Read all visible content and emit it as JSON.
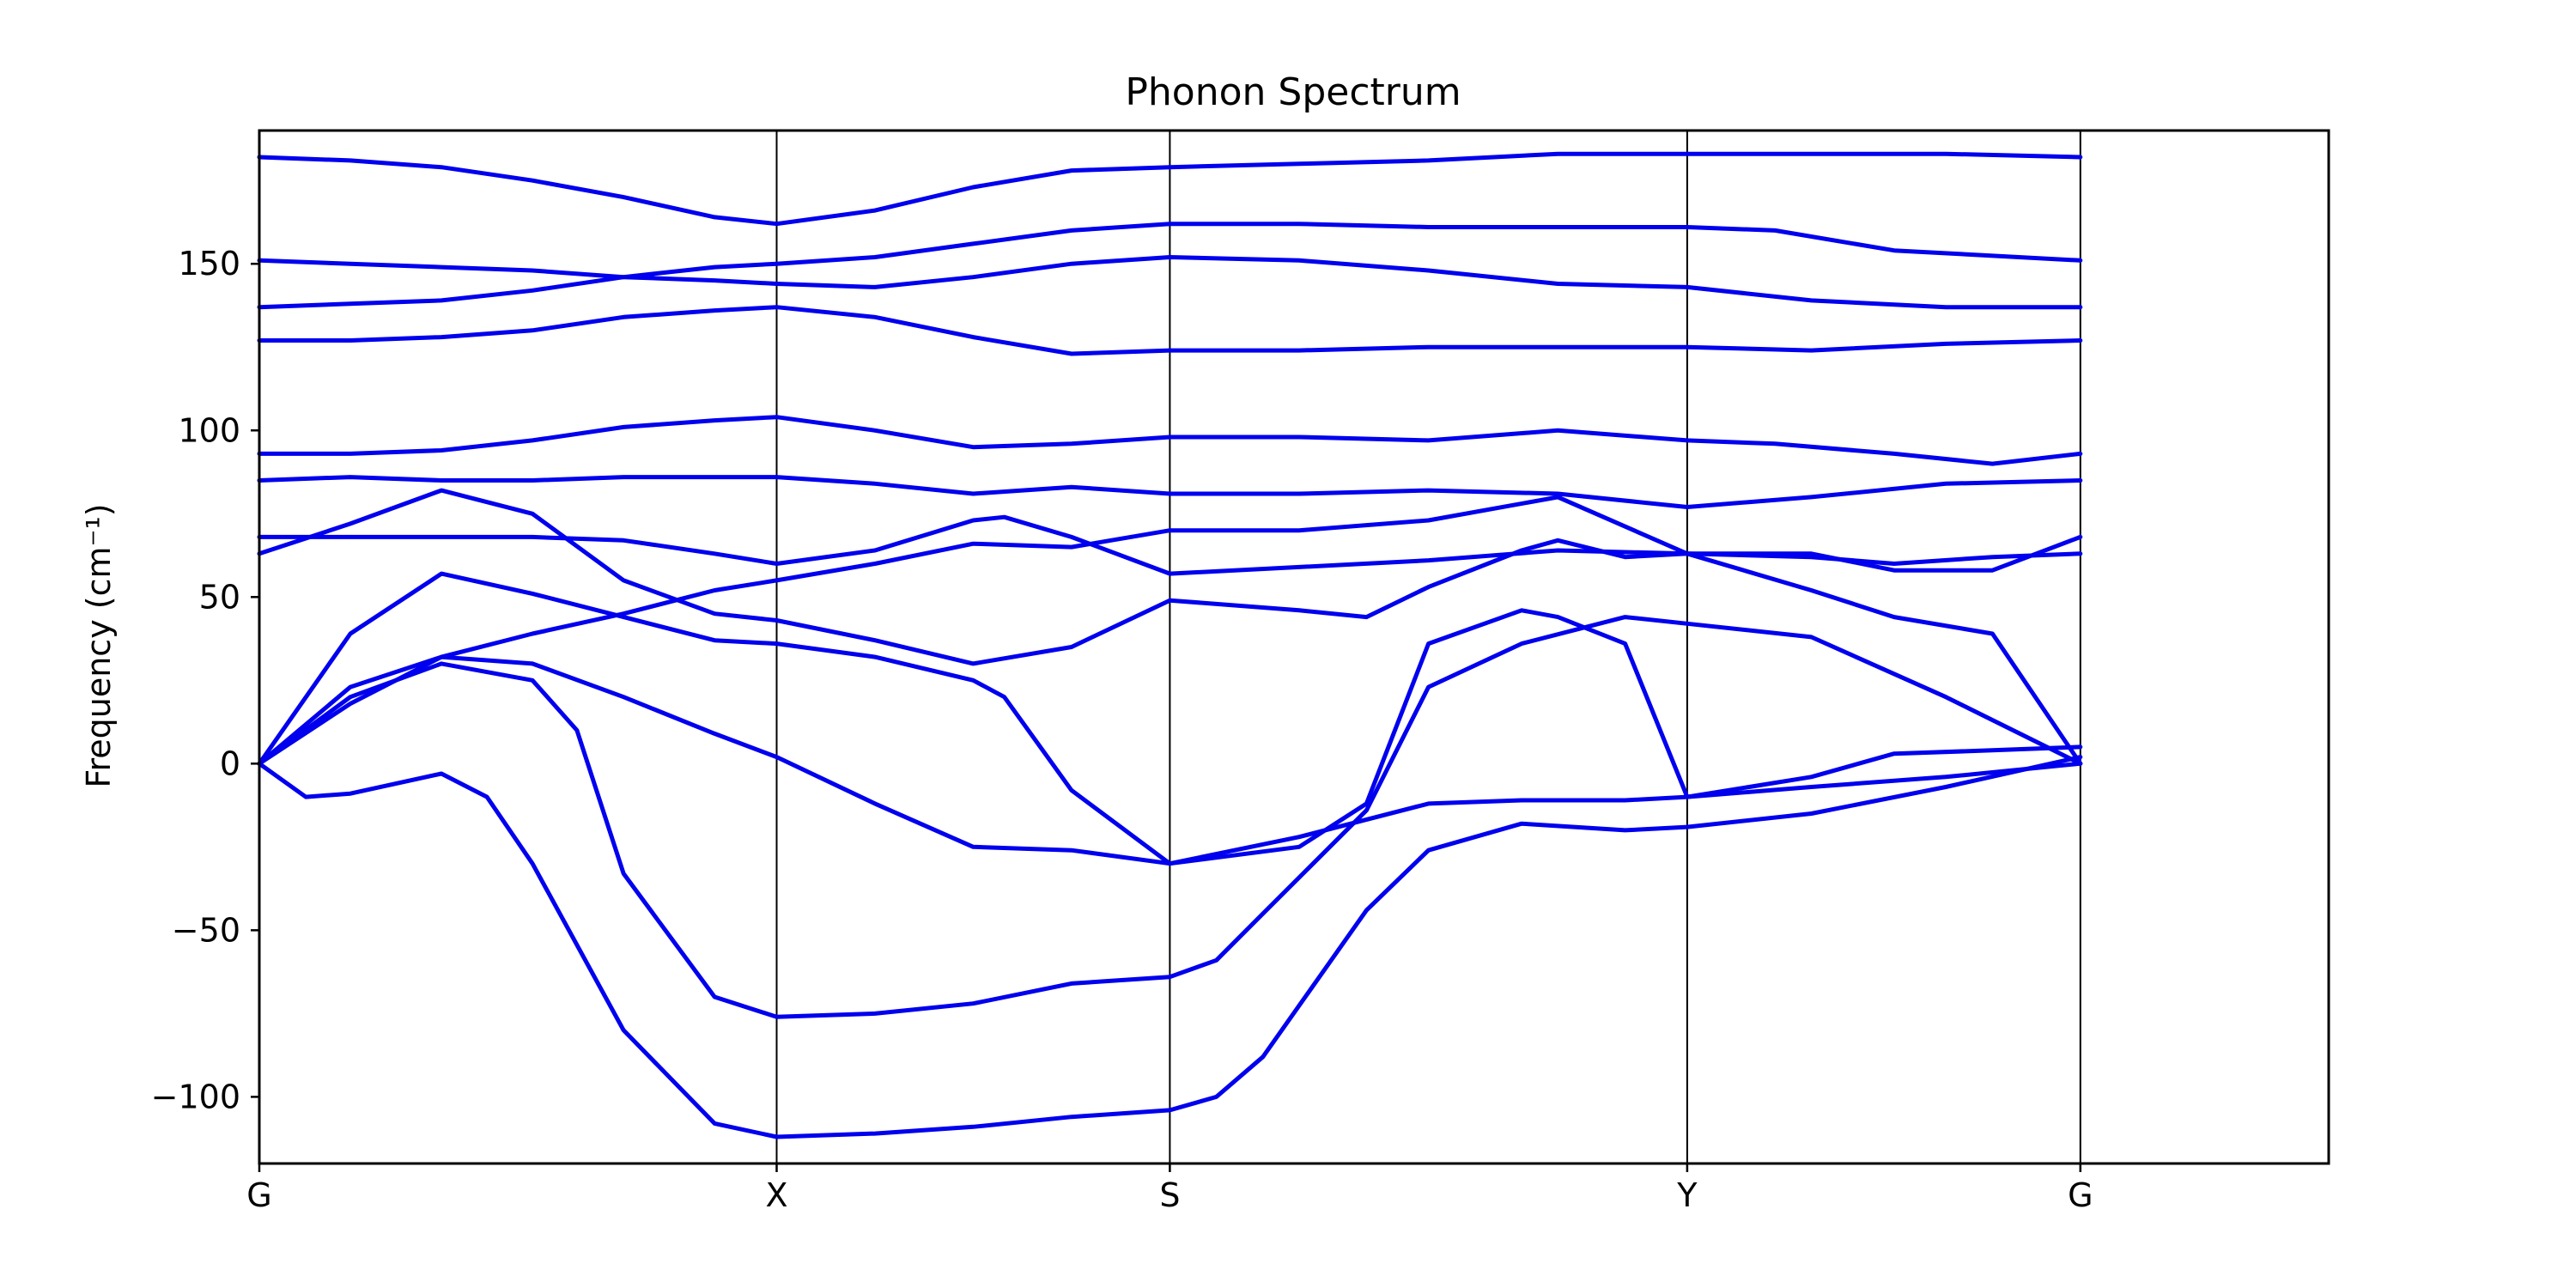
{
  "chart_data": {
    "type": "line",
    "title": "Phonon Spectrum",
    "xlabel": "",
    "ylabel": "Frequency (cm⁻¹)",
    "ylim": [
      -120,
      190
    ],
    "yticks": [
      -100,
      -50,
      0,
      50,
      100,
      150
    ],
    "xlim": [
      0,
      4
    ],
    "high_symmetry_points": [
      {
        "label": "G",
        "x": 0
      },
      {
        "label": "X",
        "x": 1
      },
      {
        "label": "S",
        "x": 1.76
      },
      {
        "label": "Y",
        "x": 2.76
      },
      {
        "label": "G",
        "x": 3.52
      }
    ],
    "grid": false,
    "series_color": "#0000ee",
    "series": [
      {
        "points": [
          [
            0,
            182
          ],
          [
            0.176,
            181
          ],
          [
            0.352,
            179
          ],
          [
            0.528,
            175
          ],
          [
            0.704,
            170
          ],
          [
            0.88,
            164
          ],
          [
            1.0,
            162
          ],
          [
            1.19,
            166
          ],
          [
            1.38,
            173
          ],
          [
            1.57,
            178
          ],
          [
            1.76,
            179
          ],
          [
            2.01,
            180
          ],
          [
            2.26,
            181
          ],
          [
            2.51,
            183
          ],
          [
            2.76,
            183
          ],
          [
            3.0,
            183
          ],
          [
            3.26,
            183
          ],
          [
            3.52,
            182
          ]
        ]
      },
      {
        "points": [
          [
            0,
            151
          ],
          [
            0.176,
            150
          ],
          [
            0.352,
            149
          ],
          [
            0.528,
            148
          ],
          [
            0.704,
            146
          ],
          [
            0.88,
            145
          ],
          [
            1.0,
            144
          ],
          [
            1.19,
            143
          ],
          [
            1.38,
            146
          ],
          [
            1.57,
            150
          ],
          [
            1.76,
            152
          ],
          [
            2.01,
            151
          ],
          [
            2.26,
            148
          ],
          [
            2.51,
            144
          ],
          [
            2.76,
            143
          ],
          [
            3.0,
            139
          ],
          [
            3.26,
            137
          ],
          [
            3.52,
            137
          ]
        ]
      },
      {
        "points": [
          [
            0,
            137
          ],
          [
            0.176,
            138
          ],
          [
            0.352,
            139
          ],
          [
            0.528,
            142
          ],
          [
            0.704,
            146
          ],
          [
            0.88,
            149
          ],
          [
            1.0,
            150
          ],
          [
            1.19,
            152
          ],
          [
            1.38,
            156
          ],
          [
            1.57,
            160
          ],
          [
            1.76,
            162
          ],
          [
            2.01,
            162
          ],
          [
            2.26,
            161
          ],
          [
            2.51,
            161
          ],
          [
            2.76,
            161
          ],
          [
            2.93,
            160
          ],
          [
            3.16,
            154
          ],
          [
            3.52,
            151
          ]
        ]
      },
      {
        "points": [
          [
            0,
            127
          ],
          [
            0.176,
            127
          ],
          [
            0.352,
            128
          ],
          [
            0.528,
            130
          ],
          [
            0.704,
            134
          ],
          [
            0.88,
            136
          ],
          [
            1.0,
            137
          ],
          [
            1.19,
            134
          ],
          [
            1.38,
            128
          ],
          [
            1.57,
            123
          ],
          [
            1.76,
            124
          ],
          [
            2.01,
            124
          ],
          [
            2.26,
            125
          ],
          [
            2.51,
            125
          ],
          [
            2.76,
            125
          ],
          [
            3.0,
            124
          ],
          [
            3.26,
            126
          ],
          [
            3.52,
            127
          ]
        ]
      },
      {
        "points": [
          [
            0,
            93
          ],
          [
            0.176,
            93
          ],
          [
            0.352,
            94
          ],
          [
            0.528,
            97
          ],
          [
            0.704,
            101
          ],
          [
            0.88,
            103
          ],
          [
            1.0,
            104
          ],
          [
            1.19,
            100
          ],
          [
            1.38,
            95
          ],
          [
            1.57,
            96
          ],
          [
            1.76,
            98
          ],
          [
            2.01,
            98
          ],
          [
            2.26,
            97
          ],
          [
            2.51,
            100
          ],
          [
            2.76,
            97
          ],
          [
            2.93,
            96
          ],
          [
            3.16,
            93
          ],
          [
            3.35,
            90
          ],
          [
            3.52,
            93
          ]
        ]
      },
      {
        "points": [
          [
            0,
            85
          ],
          [
            0.176,
            86
          ],
          [
            0.352,
            85
          ],
          [
            0.528,
            85
          ],
          [
            0.704,
            86
          ],
          [
            0.88,
            86
          ],
          [
            1.0,
            86
          ],
          [
            1.19,
            84
          ],
          [
            1.38,
            81
          ],
          [
            1.57,
            83
          ],
          [
            1.76,
            81
          ],
          [
            2.01,
            81
          ],
          [
            2.26,
            82
          ],
          [
            2.51,
            81
          ],
          [
            2.76,
            77
          ],
          [
            3.0,
            80
          ],
          [
            3.26,
            84
          ],
          [
            3.52,
            85
          ]
        ]
      },
      {
        "points": [
          [
            0,
            68
          ],
          [
            0.176,
            68
          ],
          [
            0.352,
            68
          ],
          [
            0.528,
            68
          ],
          [
            0.704,
            67
          ],
          [
            0.88,
            63
          ],
          [
            1.0,
            60
          ],
          [
            1.19,
            64
          ],
          [
            1.38,
            73
          ],
          [
            1.44,
            74
          ],
          [
            1.57,
            68
          ],
          [
            1.76,
            57
          ],
          [
            2.01,
            59
          ],
          [
            2.26,
            61
          ],
          [
            2.51,
            64
          ],
          [
            2.76,
            63
          ],
          [
            3.0,
            63
          ],
          [
            3.16,
            58
          ],
          [
            3.35,
            58
          ],
          [
            3.52,
            68
          ]
        ]
      },
      {
        "points": [
          [
            0,
            63
          ],
          [
            0.176,
            72
          ],
          [
            0.352,
            82
          ],
          [
            0.528,
            75
          ],
          [
            0.704,
            55
          ],
          [
            0.88,
            45
          ],
          [
            1.0,
            43
          ],
          [
            1.19,
            37
          ],
          [
            1.38,
            30
          ],
          [
            1.57,
            35
          ],
          [
            1.76,
            49
          ],
          [
            2.01,
            46
          ],
          [
            2.14,
            44
          ],
          [
            2.26,
            53
          ],
          [
            2.44,
            64
          ],
          [
            2.51,
            67
          ],
          [
            2.64,
            62
          ],
          [
            2.76,
            63
          ],
          [
            3.0,
            62
          ],
          [
            3.16,
            60
          ],
          [
            3.35,
            62
          ],
          [
            3.52,
            63
          ]
        ]
      },
      {
        "points": [
          [
            0,
            0
          ],
          [
            0.176,
            39
          ],
          [
            0.352,
            57
          ],
          [
            0.528,
            51
          ],
          [
            0.704,
            44
          ],
          [
            0.88,
            37
          ],
          [
            1.0,
            36
          ],
          [
            1.19,
            32
          ],
          [
            1.38,
            25
          ],
          [
            1.44,
            20
          ],
          [
            1.57,
            -8
          ],
          [
            1.76,
            -30
          ],
          [
            2.01,
            -25
          ],
          [
            2.14,
            -12
          ],
          [
            2.26,
            36
          ],
          [
            2.44,
            46
          ],
          [
            2.51,
            44
          ],
          [
            2.64,
            36
          ],
          [
            2.76,
            -10
          ],
          [
            3.0,
            -4
          ],
          [
            3.16,
            3
          ],
          [
            3.35,
            4
          ],
          [
            3.52,
            5
          ]
        ]
      },
      {
        "points": [
          [
            0,
            0
          ],
          [
            0.176,
            23
          ],
          [
            0.352,
            32
          ],
          [
            0.528,
            30
          ],
          [
            0.704,
            20
          ],
          [
            0.88,
            9
          ],
          [
            1.0,
            2
          ],
          [
            1.19,
            -12
          ],
          [
            1.38,
            -25
          ],
          [
            1.57,
            -26
          ],
          [
            1.76,
            -30
          ],
          [
            2.01,
            -22
          ],
          [
            2.26,
            -12
          ],
          [
            2.44,
            -11
          ],
          [
            2.64,
            -11
          ],
          [
            2.76,
            -10
          ],
          [
            3.0,
            -7
          ],
          [
            3.26,
            -4
          ],
          [
            3.52,
            0
          ]
        ]
      },
      {
        "points": [
          [
            0,
            0
          ],
          [
            0.176,
            18
          ],
          [
            0.352,
            32
          ],
          [
            0.528,
            39
          ],
          [
            0.704,
            45
          ],
          [
            0.88,
            52
          ],
          [
            1.0,
            55
          ],
          [
            1.19,
            60
          ],
          [
            1.38,
            66
          ],
          [
            1.57,
            65
          ],
          [
            1.76,
            70
          ],
          [
            2.01,
            70
          ],
          [
            2.26,
            73
          ],
          [
            2.51,
            80
          ],
          [
            2.76,
            63
          ],
          [
            3.0,
            52
          ],
          [
            3.16,
            44
          ],
          [
            3.35,
            39
          ],
          [
            3.52,
            0
          ]
        ]
      },
      {
        "points": [
          [
            0,
            0
          ],
          [
            0.09,
            -10
          ],
          [
            0.176,
            -9
          ],
          [
            0.352,
            -3
          ],
          [
            0.44,
            -10
          ],
          [
            0.528,
            -30
          ],
          [
            0.704,
            -80
          ],
          [
            0.88,
            -108
          ],
          [
            1.0,
            -112
          ],
          [
            1.19,
            -111
          ],
          [
            1.38,
            -109
          ],
          [
            1.57,
            -106
          ],
          [
            1.76,
            -104
          ],
          [
            1.85,
            -100
          ],
          [
            1.94,
            -88
          ],
          [
            2.14,
            -44
          ],
          [
            2.26,
            -26
          ],
          [
            2.44,
            -18
          ],
          [
            2.64,
            -20
          ],
          [
            2.76,
            -19
          ],
          [
            3.0,
            -15
          ],
          [
            3.26,
            -7
          ],
          [
            3.52,
            2
          ]
        ]
      },
      {
        "points": [
          [
            0,
            0
          ],
          [
            0.176,
            20
          ],
          [
            0.352,
            30
          ],
          [
            0.528,
            25
          ],
          [
            0.614,
            10
          ],
          [
            0.704,
            -33
          ],
          [
            0.88,
            -70
          ],
          [
            1.0,
            -76
          ],
          [
            1.19,
            -75
          ],
          [
            1.38,
            -72
          ],
          [
            1.57,
            -66
          ],
          [
            1.76,
            -64
          ],
          [
            1.85,
            -59
          ],
          [
            1.94,
            -45
          ],
          [
            2.14,
            -14
          ],
          [
            2.26,
            23
          ],
          [
            2.44,
            36
          ],
          [
            2.64,
            44
          ],
          [
            2.76,
            42
          ],
          [
            3.0,
            38
          ],
          [
            3.26,
            20
          ],
          [
            3.52,
            0
          ]
        ]
      }
    ]
  }
}
